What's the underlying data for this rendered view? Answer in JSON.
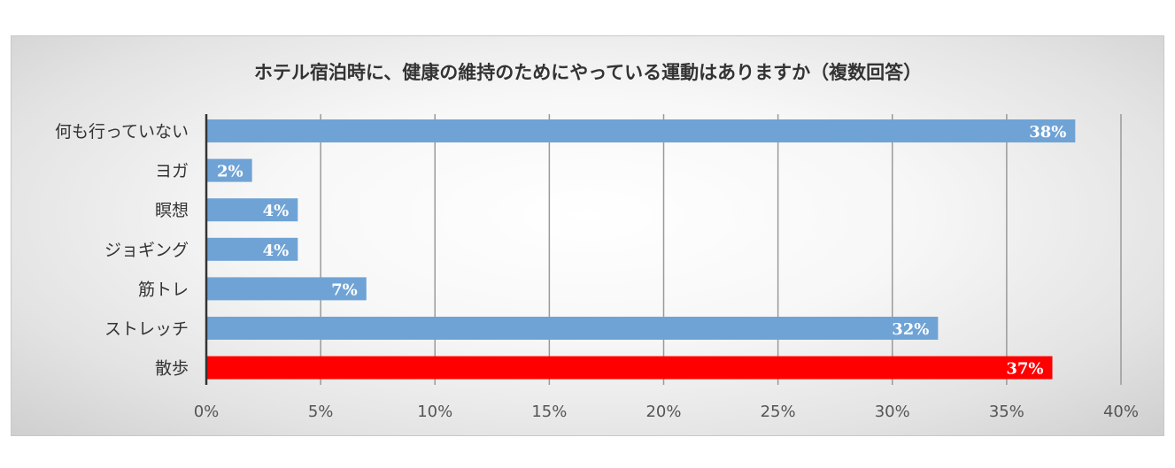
{
  "chart_data": {
    "type": "bar",
    "orientation": "horizontal",
    "title": "ホテル宿泊時に、健康の維持のためにやっている運動はありますか（複数回答）",
    "categories": [
      "何も行っていない",
      "ヨガ",
      "瞑想",
      "ジョギング",
      "筋トレ",
      "ストレッチ",
      "散歩"
    ],
    "values": [
      38,
      2,
      4,
      4,
      7,
      32,
      37
    ],
    "data_labels": [
      "38%",
      "2%",
      "4%",
      "4%",
      "7%",
      "32%",
      "37%"
    ],
    "xlim": [
      0,
      40
    ],
    "xticks": [
      0,
      5,
      10,
      15,
      20,
      25,
      30,
      35,
      40
    ],
    "xtick_labels": [
      "0%",
      "5%",
      "10%",
      "15%",
      "20%",
      "25%",
      "30%",
      "35%",
      "40%"
    ],
    "xlabel": "",
    "ylabel": "",
    "grid": true,
    "colors": {
      "default_bar": "#6fa3d6",
      "highlight_bar": "#ff0000",
      "grid": "#9a9a9a",
      "axis": "#333333"
    },
    "highlight_index": 6
  }
}
